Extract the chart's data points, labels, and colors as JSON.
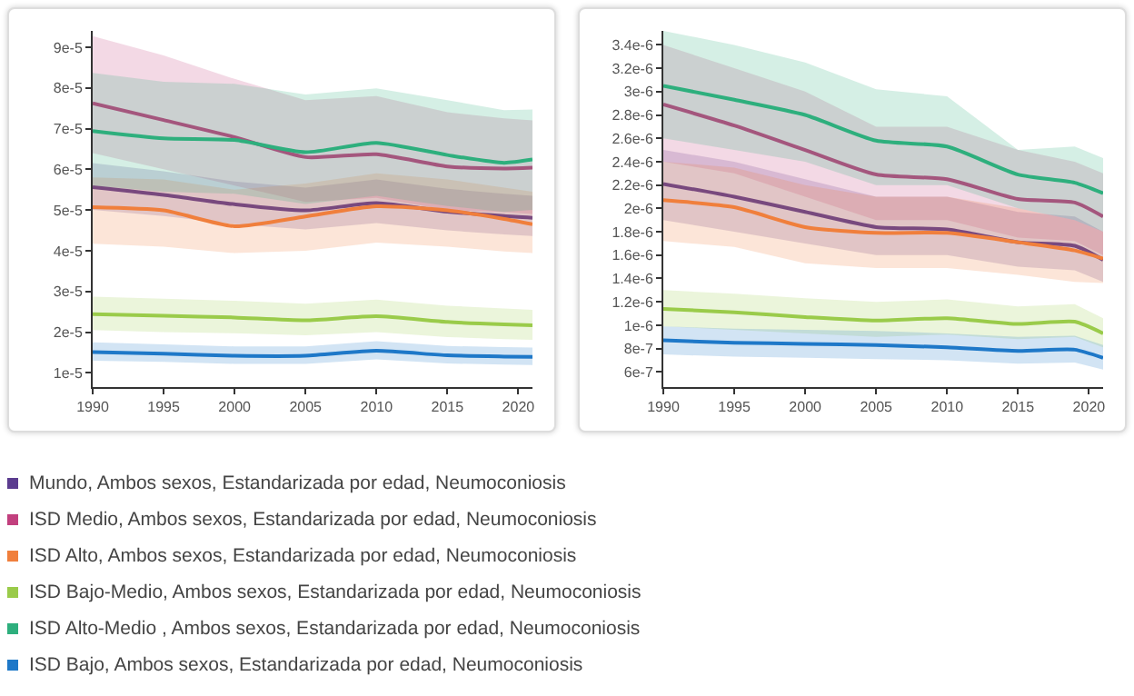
{
  "chart_data": [
    {
      "type": "line",
      "x": [
        1990,
        1995,
        2000,
        2005,
        2010,
        2015,
        2019,
        2021
      ],
      "xlim": [
        1990,
        2021
      ],
      "xticks": [
        1990,
        1995,
        2000,
        2005,
        2010,
        2015,
        2020
      ],
      "ylim": [
        6.5e-06,
        9.4e-05
      ],
      "yticks": [
        {
          "value": 1e-05,
          "label": "1e-5"
        },
        {
          "value": 2e-05,
          "label": "2e-5"
        },
        {
          "value": 3e-05,
          "label": "3e-5"
        },
        {
          "value": 4e-05,
          "label": "4e-5"
        },
        {
          "value": 5e-05,
          "label": "5e-5"
        },
        {
          "value": 6e-05,
          "label": "6e-5"
        },
        {
          "value": 7e-05,
          "label": "7e-5"
        },
        {
          "value": 8e-05,
          "label": "8e-5"
        },
        {
          "value": 9e-05,
          "label": "9e-5"
        }
      ],
      "legend": "bottom",
      "grid": false,
      "series": [
        {
          "name": "Mundo, Ambos sexos, Estandarizada por edad, Neumoconiosis",
          "color": "#5b3c8f",
          "values": [
            5.56e-05,
            5.37e-05,
            5.14e-05,
            4.99e-05,
            5.17e-05,
            4.96e-05,
            4.85e-05,
            4.81e-05
          ],
          "lower": [
            5e-05,
            4.85e-05,
            4.65e-05,
            4.52e-05,
            4.68e-05,
            4.5e-05,
            4.4e-05,
            4.36e-05
          ],
          "upper": [
            6.15e-05,
            5.95e-05,
            5.7e-05,
            5.55e-05,
            5.75e-05,
            5.52e-05,
            5.4e-05,
            5.35e-05
          ]
        },
        {
          "name": "ISD Medio, Ambos sexos, Estandarizada por edad, Neumoconiosis",
          "color": "#c2407e",
          "values": [
            7.62e-05,
            7.21e-05,
            6.79e-05,
            6.3e-05,
            6.37e-05,
            6.07e-05,
            6.02e-05,
            6.04e-05
          ],
          "lower": [
            6.4e-05,
            6e-05,
            5.6e-05,
            5.2e-05,
            5.3e-05,
            5e-05,
            4.95e-05,
            4.9e-05
          ],
          "upper": [
            9.27e-05,
            8.8e-05,
            8.22e-05,
            7.7e-05,
            7.8e-05,
            7.4e-05,
            7.25e-05,
            7.2e-05
          ]
        },
        {
          "name": "ISD Alto, Ambos sexos, Estandarizada por edad, Neumoconiosis",
          "color": "#f07f3c",
          "values": [
            5.07e-05,
            4.99e-05,
            4.6e-05,
            4.84e-05,
            5.09e-05,
            4.99e-05,
            4.78e-05,
            4.65e-05
          ],
          "lower": [
            4.17e-05,
            4.1e-05,
            3.94e-05,
            4e-05,
            4.2e-05,
            4.1e-05,
            3.98e-05,
            3.94e-05
          ],
          "upper": [
            5.8e-05,
            5.75e-05,
            5.5e-05,
            5.65e-05,
            5.9e-05,
            5.75e-05,
            5.55e-05,
            5.45e-05
          ]
        },
        {
          "name": "ISD Bajo-Medio, Ambos sexos, Estandarizada por edad, Neumoconiosis",
          "color": "#9acb4a",
          "values": [
            2.44e-05,
            2.4e-05,
            2.36e-05,
            2.29e-05,
            2.39e-05,
            2.25e-05,
            2.19e-05,
            2.17e-05
          ],
          "lower": [
            2.05e-05,
            2e-05,
            1.97e-05,
            1.92e-05,
            2e-05,
            1.88e-05,
            1.83e-05,
            1.81e-05
          ],
          "upper": [
            2.87e-05,
            2.82e-05,
            2.77e-05,
            2.7e-05,
            2.8e-05,
            2.65e-05,
            2.58e-05,
            2.55e-05
          ]
        },
        {
          "name": "ISD Alto-Medio , Ambos sexos, Estandarizada por edad, Neumoconiosis",
          "color": "#2eaf7d",
          "values": [
            6.94e-05,
            6.76e-05,
            6.72e-05,
            6.42e-05,
            6.65e-05,
            6.35e-05,
            6.16e-05,
            6.24e-05
          ],
          "lower": [
            5.6e-05,
            5.45e-05,
            5.4e-05,
            5.15e-05,
            5.35e-05,
            5.1e-05,
            4.95e-05,
            5e-05
          ],
          "upper": [
            8.37e-05,
            8.15e-05,
            8.1e-05,
            7.84e-05,
            7.99e-05,
            7.7e-05,
            7.45e-05,
            7.47e-05
          ]
        },
        {
          "name": "ISD Bajo, Ambos sexos, Estandarizada por edad, Neumoconiosis",
          "color": "#1e78c8",
          "values": [
            1.51e-05,
            1.47e-05,
            1.42e-05,
            1.42e-05,
            1.54e-05,
            1.43e-05,
            1.4e-05,
            1.39e-05
          ],
          "lower": [
            1.3e-05,
            1.27e-05,
            1.22e-05,
            1.22e-05,
            1.33e-05,
            1.23e-05,
            1.2e-05,
            1.19e-05
          ],
          "upper": [
            1.75e-05,
            1.7e-05,
            1.65e-05,
            1.65e-05,
            1.78e-05,
            1.66e-05,
            1.63e-05,
            1.62e-05
          ]
        }
      ]
    },
    {
      "type": "line",
      "x": [
        1990,
        1995,
        2000,
        2005,
        2010,
        2015,
        2019,
        2021
      ],
      "xlim": [
        1990,
        2021
      ],
      "xticks": [
        1990,
        1995,
        2000,
        2005,
        2010,
        2015,
        2020
      ],
      "ylim": [
        4.7e-07,
        3.52e-06
      ],
      "yticks": [
        {
          "value": 6e-07,
          "label": "6e-7"
        },
        {
          "value": 8e-07,
          "label": "8e-7"
        },
        {
          "value": 1e-06,
          "label": "1e-6"
        },
        {
          "value": 1.2e-06,
          "label": "1.2e-6"
        },
        {
          "value": 1.4e-06,
          "label": "1.4e-6"
        },
        {
          "value": 1.6e-06,
          "label": "1.6e-6"
        },
        {
          "value": 1.8e-06,
          "label": "1.8e-6"
        },
        {
          "value": 2e-06,
          "label": "2e-6"
        },
        {
          "value": 2.2e-06,
          "label": "2.2e-6"
        },
        {
          "value": 2.4e-06,
          "label": "2.4e-6"
        },
        {
          "value": 2.6e-06,
          "label": "2.6e-6"
        },
        {
          "value": 2.8e-06,
          "label": "2.8e-6"
        },
        {
          "value": 3e-06,
          "label": "3e-6"
        },
        {
          "value": 3.2e-06,
          "label": "3.2e-6"
        },
        {
          "value": 3.4e-06,
          "label": "3.4e-6"
        }
      ],
      "grid": false,
      "series": [
        {
          "color": "#5b3c8f",
          "values": [
            2.21e-06,
            2.1e-06,
            1.97e-06,
            1.84e-06,
            1.82e-06,
            1.71e-06,
            1.68e-06,
            1.56e-06
          ],
          "lower": [
            1.9e-06,
            1.8e-06,
            1.7e-06,
            1.6e-06,
            1.6e-06,
            1.5e-06,
            1.47e-06,
            1.37e-06
          ],
          "upper": [
            2.5e-06,
            2.4e-06,
            2.25e-06,
            2.1e-06,
            2.1e-06,
            1.97e-06,
            1.93e-06,
            1.8e-06
          ]
        },
        {
          "color": "#c2407e",
          "values": [
            2.89e-06,
            2.71e-06,
            2.5e-06,
            2.29e-06,
            2.25e-06,
            2.08e-06,
            2.05e-06,
            1.93e-06
          ],
          "lower": [
            2.4e-06,
            2.3e-06,
            2.1e-06,
            1.9e-06,
            1.9e-06,
            1.75e-06,
            1.72e-06,
            1.6e-06
          ],
          "upper": [
            3.4e-06,
            3.2e-06,
            3e-06,
            2.7e-06,
            2.7e-06,
            2.5e-06,
            2.4e-06,
            2.3e-06
          ]
        },
        {
          "color": "#f07f3c",
          "values": [
            2.07e-06,
            2.01e-06,
            1.84e-06,
            1.79e-06,
            1.79e-06,
            1.71e-06,
            1.64e-06,
            1.57e-06
          ],
          "lower": [
            1.72e-06,
            1.67e-06,
            1.53e-06,
            1.49e-06,
            1.49e-06,
            1.43e-06,
            1.37e-06,
            1.36e-06
          ],
          "upper": [
            2.4e-06,
            2.35e-06,
            2.2e-06,
            2.1e-06,
            2.1e-06,
            2e-06,
            1.9e-06,
            1.8e-06
          ]
        },
        {
          "color": "#9acb4a",
          "values": [
            1.14e-06,
            1.11e-06,
            1.07e-06,
            1.04e-06,
            1.06e-06,
            1.01e-06,
            1.03e-06,
            9.3e-07
          ],
          "lower": [
            9.9e-07,
            9.6e-07,
            9.3e-07,
            9e-07,
            9.2e-07,
            8.8e-07,
            9e-07,
            8.1e-07
          ],
          "upper": [
            1.3e-06,
            1.27e-06,
            1.23e-06,
            1.2e-06,
            1.22e-06,
            1.16e-06,
            1.18e-06,
            1.06e-06
          ]
        },
        {
          "color": "#2eaf7d",
          "values": [
            3.05e-06,
            2.93e-06,
            2.8e-06,
            2.58e-06,
            2.53e-06,
            2.29e-06,
            2.22e-06,
            2.13e-06
          ],
          "lower": [
            2.6e-06,
            2.5e-06,
            2.4e-06,
            2.2e-06,
            2.2e-06,
            2e-06,
            1.9e-06,
            1.8e-06
          ],
          "upper": [
            3.52e-06,
            3.4e-06,
            3.25e-06,
            3.02e-06,
            2.96e-06,
            2.5e-06,
            2.53e-06,
            2.43e-06
          ]
        },
        {
          "color": "#1e78c8",
          "values": [
            8.7e-07,
            8.5e-07,
            8.4e-07,
            8.3e-07,
            8.1e-07,
            7.8e-07,
            7.9e-07,
            7.2e-07
          ],
          "lower": [
            7.5e-07,
            7.3e-07,
            7.2e-07,
            7.1e-07,
            7e-07,
            6.7e-07,
            6.8e-07,
            6.2e-07
          ],
          "upper": [
            9.9e-07,
            9.7e-07,
            9.6e-07,
            9.5e-07,
            9.3e-07,
            9e-07,
            9.1e-07,
            8.3e-07
          ]
        }
      ]
    }
  ]
}
